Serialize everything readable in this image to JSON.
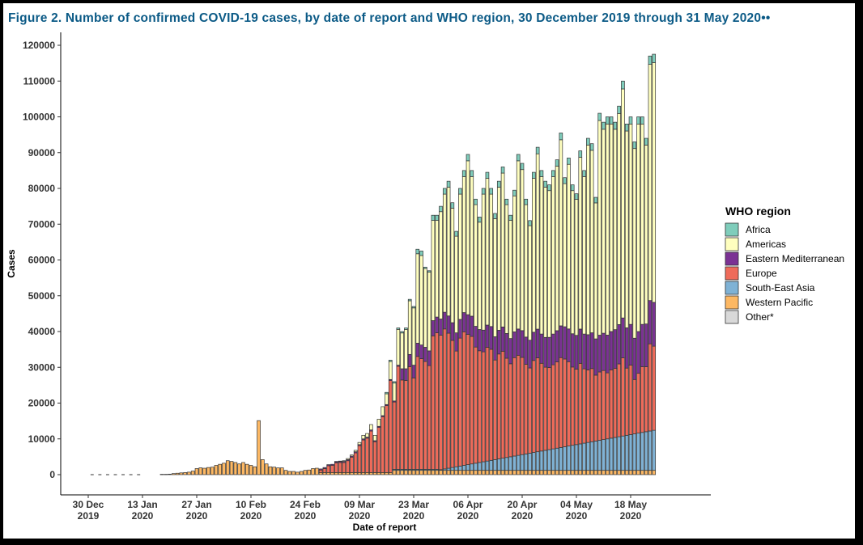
{
  "title": "Figure 2. Number of confirmed COVID-19 cases, by date of report and WHO region, 30 December 2019 through 31 May 2020",
  "title_suffix": "••",
  "chart_data": {
    "type": "bar",
    "stacked": true,
    "title": "Number of confirmed COVID-19 cases, by date of report and WHO region",
    "xlabel": "Date of report",
    "ylabel": "Cases",
    "ylim": [
      0,
      120000
    ],
    "yticks": [
      0,
      10000,
      20000,
      30000,
      40000,
      50000,
      60000,
      70000,
      80000,
      90000,
      100000,
      110000,
      120000
    ],
    "xticks": [
      {
        "day": 0,
        "line1": "30 Dec",
        "line2": "2019"
      },
      {
        "day": 14,
        "line1": "13 Jan",
        "line2": "2020"
      },
      {
        "day": 28,
        "line1": "27 Jan",
        "line2": "2020"
      },
      {
        "day": 42,
        "line1": "10 Feb",
        "line2": "2020"
      },
      {
        "day": 56,
        "line1": "24 Feb",
        "line2": "2020"
      },
      {
        "day": 70,
        "line1": "09 Mar",
        "line2": "2020"
      },
      {
        "day": 84,
        "line1": "23 Mar",
        "line2": "2020"
      },
      {
        "day": 98,
        "line1": "06 Apr",
        "line2": "2020"
      },
      {
        "day": 112,
        "line1": "20 Apr",
        "line2": "2020"
      },
      {
        "day": 126,
        "line1": "04 May",
        "line2": "2020"
      },
      {
        "day": 140,
        "line1": "18 May",
        "line2": "2020"
      }
    ],
    "day0": "2019-12-30",
    "legend_title": "WHO region",
    "legend_position": "right",
    "series_order_bottom_to_top": [
      "Other*",
      "Western Pacific",
      "South-East Asia",
      "Europe",
      "Eastern Mediterranean",
      "Americas",
      "Africa"
    ],
    "legend": [
      {
        "name": "Africa",
        "color": "#7fcdbb"
      },
      {
        "name": "Americas",
        "color": "#ffffbf"
      },
      {
        "name": "Eastern Mediterranean",
        "color": "#7b3294"
      },
      {
        "name": "Europe",
        "color": "#ef6b5a"
      },
      {
        "name": "South-East Asia",
        "color": "#7fb2d5"
      },
      {
        "name": "Western Pacific",
        "color": "#fdb863"
      },
      {
        "name": "Other*",
        "color": "#d9d9d9"
      }
    ],
    "totals_by_day": [
      0,
      0,
      0,
      0,
      0,
      0,
      0,
      0,
      0,
      0,
      0,
      0,
      0,
      0,
      0,
      0,
      0,
      0,
      0,
      100,
      100,
      150,
      300,
      400,
      500,
      600,
      700,
      1000,
      1700,
      1900,
      1800,
      2000,
      2100,
      2600,
      2900,
      3200,
      3900,
      3700,
      3400,
      3000,
      3400,
      2900,
      2600,
      2200,
      15100,
      4200,
      3000,
      2200,
      2100,
      1900,
      1900,
      1200,
      900,
      900,
      700,
      900,
      1200,
      1300,
      1700,
      1800,
      1600,
      2000,
      2800,
      2900,
      3700,
      3800,
      3900,
      4500,
      5500,
      6800,
      9000,
      11000,
      11500,
      14000,
      11000,
      15500,
      19000,
      23000,
      32000,
      26000,
      41000,
      40000,
      41000,
      49000,
      47000,
      63000,
      62500,
      58000,
      57000,
      72500,
      72500,
      75000,
      80000,
      82000,
      76000,
      68000,
      80000,
      85000,
      89500,
      85000,
      77000,
      72000,
      80000,
      84500,
      80000,
      73000,
      82000,
      86000,
      77000,
      72500,
      79500,
      89500,
      87000,
      77000,
      71000,
      84500,
      91500,
      85000,
      82000,
      81000,
      85000,
      88000,
      95500,
      83000,
      88500,
      81000,
      78500,
      90500,
      85000,
      94000,
      92500,
      77500,
      101000,
      98500,
      100000,
      100000,
      98500,
      103000,
      110000,
      98000,
      100000,
      93000,
      100000,
      100000,
      94000,
      117000,
      117500
    ],
    "americas_by_day": [
      0,
      0,
      0,
      0,
      0,
      0,
      0,
      0,
      0,
      0,
      0,
      0,
      0,
      0,
      0,
      0,
      0,
      0,
      0,
      0,
      0,
      0,
      0,
      0,
      0,
      0,
      0,
      0,
      0,
      0,
      0,
      0,
      0,
      0,
      0,
      0,
      0,
      0,
      0,
      0,
      0,
      0,
      0,
      0,
      0,
      0,
      0,
      0,
      0,
      0,
      0,
      0,
      0,
      0,
      0,
      0,
      0,
      0,
      0,
      0,
      0,
      0,
      0,
      0,
      100,
      100,
      200,
      300,
      300,
      400,
      600,
      1000,
      1000,
      1500,
      1500,
      2000,
      2500,
      3000,
      5000,
      5000,
      10000,
      10000,
      11000,
      15000,
      16000,
      25000,
      25000,
      22000,
      22000,
      28000,
      27000,
      30000,
      33000,
      36000,
      32000,
      27000,
      35000,
      38000,
      43000,
      39000,
      34000,
      30000,
      38000,
      41000,
      37000,
      33000,
      40000,
      43000,
      36000,
      33000,
      38000,
      47000,
      45000,
      37000,
      32000,
      43000,
      49000,
      44000,
      42000,
      41000,
      44000,
      46000,
      52000,
      40000,
      46000,
      40000,
      38000,
      48000,
      44000,
      53000,
      51000,
      38000,
      60000,
      57000,
      59000,
      58000,
      56000,
      59000,
      64000,
      55000,
      56000,
      53000,
      58000,
      56000,
      50000,
      66000,
      67000
    ],
    "bar_outline": "#333333"
  }
}
